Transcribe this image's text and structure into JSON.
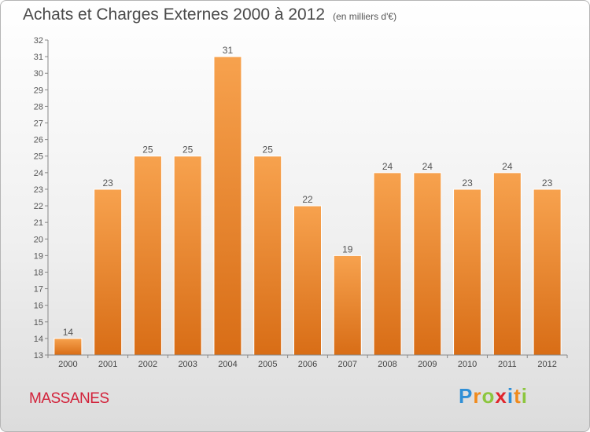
{
  "title": "Achats et Charges Externes 2000 à 2012",
  "subtitle": "(en milliers d'€)",
  "location": "MASSANES",
  "logo": {
    "text": "Proxiti",
    "letters": [
      {
        "ch": "P",
        "color": "#2f8fd6"
      },
      {
        "ch": "r",
        "color": "#f08a1c"
      },
      {
        "ch": "o",
        "color": "#8cc63e"
      },
      {
        "ch": "x",
        "color": "#e0262c"
      },
      {
        "ch": "i",
        "color": "#2f8fd6"
      },
      {
        "ch": "t",
        "color": "#f08a1c"
      },
      {
        "ch": "i",
        "color": "#8cc63e"
      }
    ]
  },
  "chart_data": {
    "type": "bar",
    "categories": [
      "2000",
      "2001",
      "2002",
      "2003",
      "2004",
      "2005",
      "2006",
      "2007",
      "2008",
      "2009",
      "2010",
      "2011",
      "2012"
    ],
    "values": [
      14,
      23,
      25,
      25,
      31,
      25,
      22,
      19,
      24,
      24,
      23,
      24,
      23
    ],
    "ylim": [
      13,
      32
    ],
    "yticks": [
      13,
      14,
      15,
      16,
      17,
      18,
      19,
      20,
      21,
      22,
      23,
      24,
      25,
      26,
      27,
      28,
      29,
      30,
      31,
      32
    ],
    "grid": false,
    "bar_color_top": "#f7a24e",
    "bar_color_bottom": "#d86d16",
    "data_labels": true
  }
}
